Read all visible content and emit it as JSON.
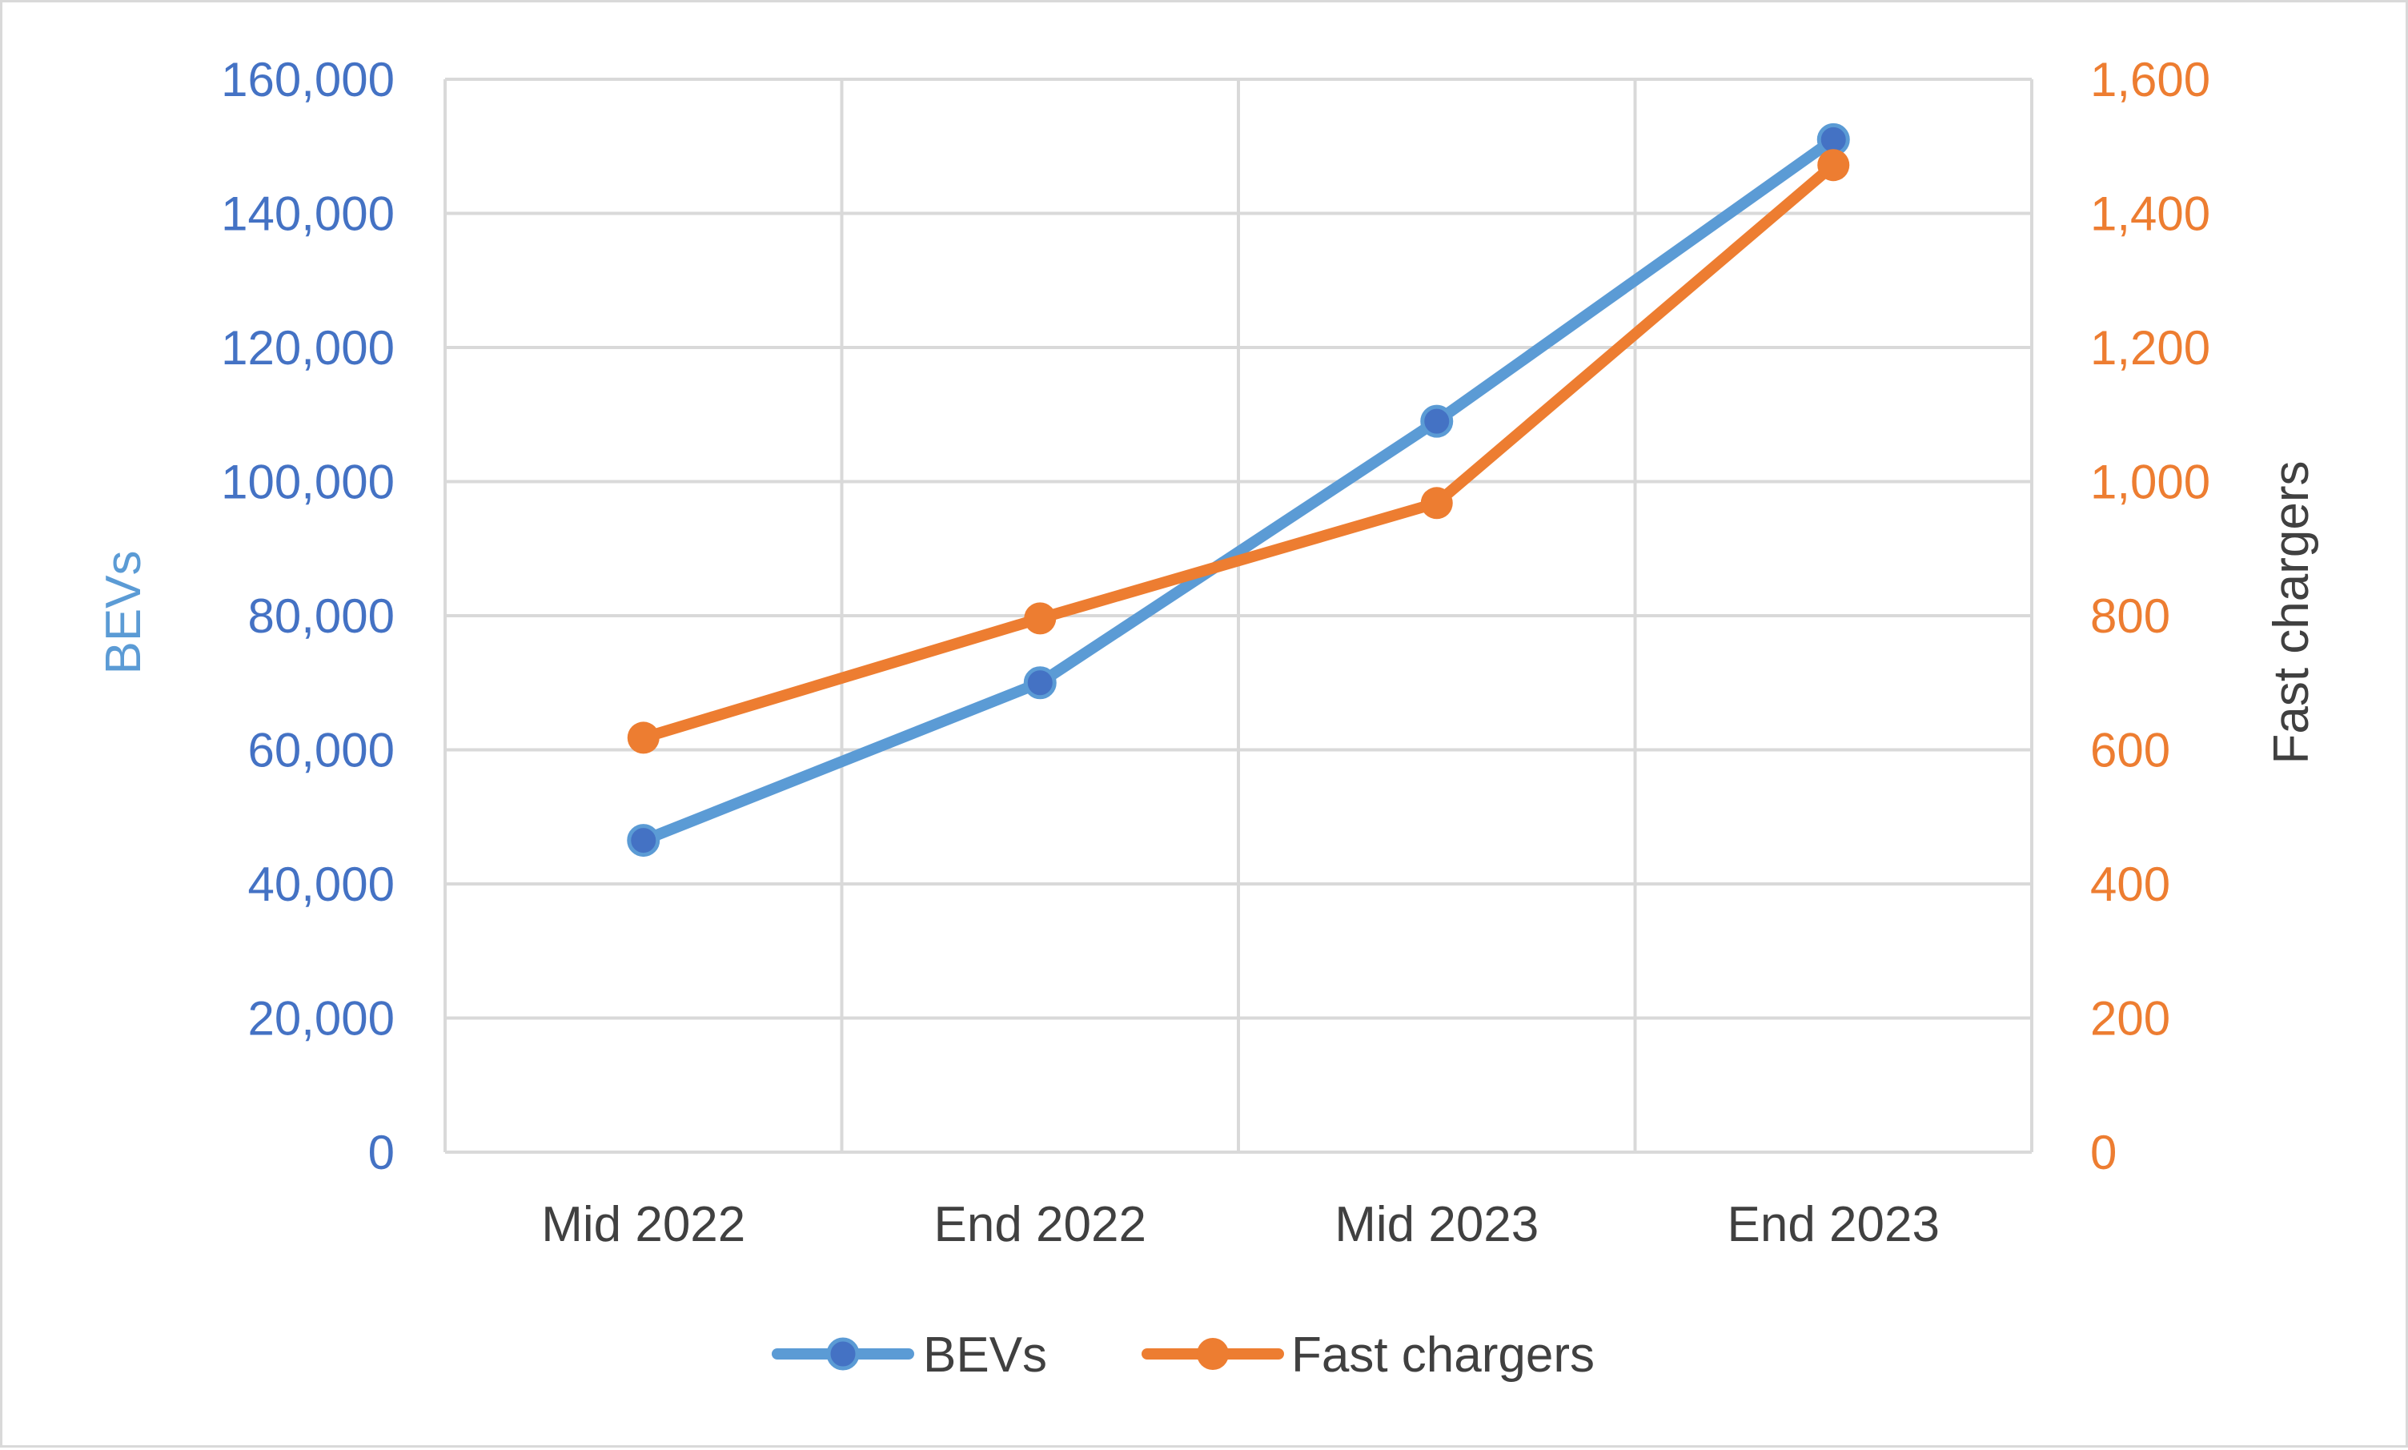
{
  "chart_data": {
    "type": "line",
    "categories": [
      "Mid 2022",
      "End 2022",
      "Mid 2023",
      "End 2023"
    ],
    "series": [
      {
        "name": "BEVs",
        "axis": "left",
        "values": [
          46500,
          70000,
          109000,
          151000
        ],
        "color": "#5b9bd5",
        "marker_color": "#4472c4"
      },
      {
        "name": "Fast chargers",
        "axis": "right",
        "values": [
          618,
          796,
          968,
          1472
        ],
        "color": "#ed7d31",
        "marker_color": "#ed7d31"
      }
    ],
    "y_left": {
      "label": "BEVs",
      "range": [
        0,
        160000
      ],
      "ticks": [
        "0",
        "20,000",
        "40,000",
        "60,000",
        "80,000",
        "100,000",
        "120,000",
        "140,000",
        "160,000"
      ]
    },
    "y_right": {
      "label": "Fast chargers",
      "range": [
        0,
        1600
      ],
      "ticks": [
        "0",
        "200",
        "400",
        "600",
        "800",
        "1,000",
        "1,200",
        "1,400",
        "1,600"
      ]
    },
    "grid": true,
    "legend_position": "bottom",
    "colors": {
      "grid": "#d9d9d9",
      "left_axis_text": "#4472c4",
      "right_axis_text": "#ed7d31"
    }
  }
}
